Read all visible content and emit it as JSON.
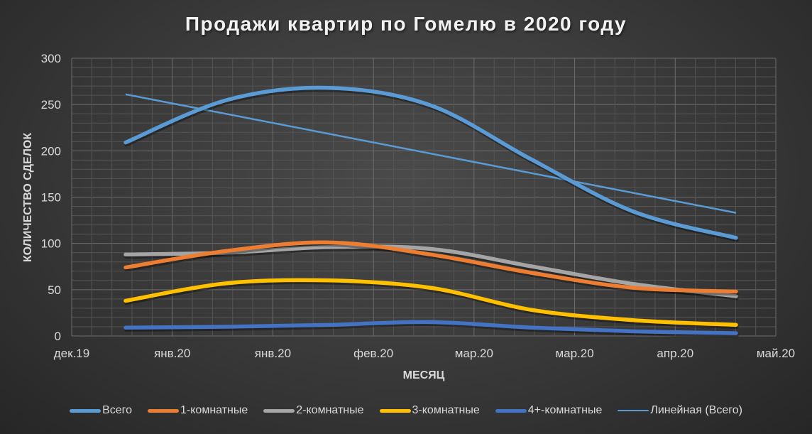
{
  "chart_data": {
    "type": "line",
    "title": "Продажи квартир по Гомелю в 2020 году",
    "xlabel": "МЕСЯЦ",
    "ylabel": "КОЛИЧЕСТВО СДЕЛОК",
    "ylim": [
      0,
      300
    ],
    "yticks": [
      0,
      50,
      100,
      150,
      200,
      250,
      300
    ],
    "xtick_labels": [
      "дек.19",
      "янв.20",
      "янв.20",
      "фев.20",
      "мар.20",
      "мар.20",
      "апр.20",
      "май.20"
    ],
    "grid": true,
    "smooth": true,
    "legend_position": "bottom",
    "point_count": 7,
    "series": [
      {
        "name": "Всего",
        "color": "#5b9bd5",
        "values": [
          209,
          255,
          268,
          249,
          190,
          134,
          106
        ]
      },
      {
        "name": "1-комнатные",
        "color": "#ed7d31",
        "values": [
          74,
          92,
          101,
          88,
          68,
          52,
          48
        ]
      },
      {
        "name": "2-комнатные",
        "color": "#a5a5a5",
        "values": [
          88,
          90,
          96,
          94,
          75,
          56,
          43
        ]
      },
      {
        "name": "3-комнатные",
        "color": "#ffc000",
        "values": [
          38,
          57,
          60,
          52,
          28,
          17,
          12
        ]
      },
      {
        "name": "4+-комнатные",
        "color": "#4472c4",
        "values": [
          9,
          10,
          12,
          15,
          9,
          5,
          3
        ]
      },
      {
        "name": "Линейная (Всего)",
        "color": "#5b9bd5",
        "trendline": true,
        "values": [
          261,
          133
        ]
      }
    ]
  },
  "legend": [
    {
      "label": "Всего",
      "color": "#5b9bd5",
      "thin": false
    },
    {
      "label": "1-комнатные",
      "color": "#ed7d31",
      "thin": false
    },
    {
      "label": "2-комнатные",
      "color": "#a5a5a5",
      "thin": false
    },
    {
      "label": "3-комнатные",
      "color": "#ffc000",
      "thin": false
    },
    {
      "label": "4+-комнатные",
      "color": "#4472c4",
      "thin": false
    },
    {
      "label": "Линейная (Всего)",
      "color": "#5b9bd5",
      "thin": true
    }
  ]
}
